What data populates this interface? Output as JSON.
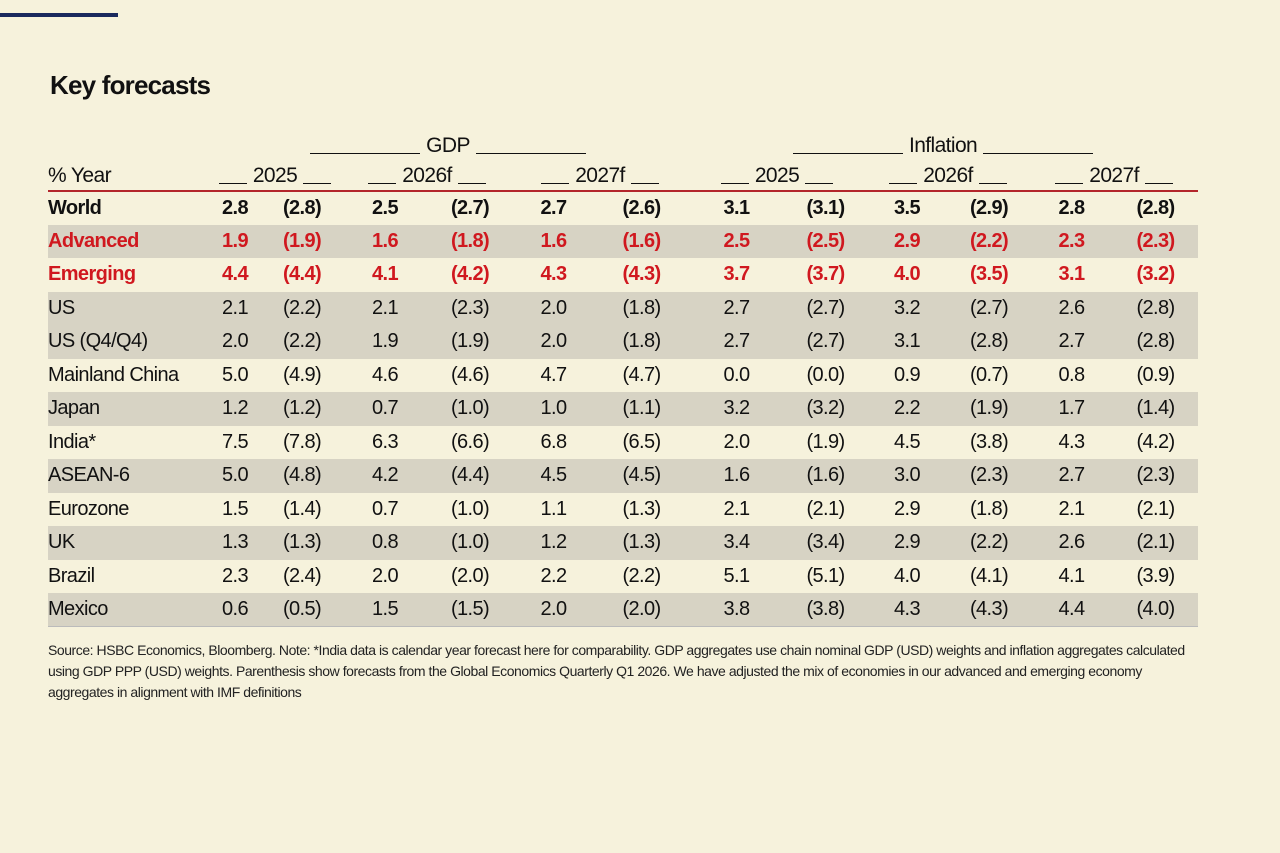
{
  "header": {
    "title": "Key forecasts"
  },
  "table": {
    "row_header": "% Year",
    "groups": [
      "GDP",
      "Inflation"
    ],
    "years": [
      "2025",
      "2026f",
      "2027f",
      "2025",
      "2026f",
      "2027f"
    ],
    "rows": [
      {
        "label": "World",
        "values": [
          "2.8",
          "(2.8)",
          "2.5",
          "(2.7)",
          "2.7",
          "(2.6)",
          "3.1",
          "(3.1)",
          "3.5",
          "(2.9)",
          "2.8",
          "(2.8)"
        ]
      },
      {
        "label": "Advanced",
        "values": [
          "1.9",
          "(1.9)",
          "1.6",
          "(1.8)",
          "1.6",
          "(1.6)",
          "2.5",
          "(2.5)",
          "2.9",
          "(2.2)",
          "2.3",
          "(2.3)"
        ]
      },
      {
        "label": "Emerging",
        "values": [
          "4.4",
          "(4.4)",
          "4.1",
          "(4.2)",
          "4.3",
          "(4.3)",
          "3.7",
          "(3.7)",
          "4.0",
          "(3.5)",
          "3.1",
          "(3.2)"
        ]
      },
      {
        "label": "US",
        "values": [
          "2.1",
          "(2.2)",
          "2.1",
          "(2.3)",
          "2.0",
          "(1.8)",
          "2.7",
          "(2.7)",
          "3.2",
          "(2.7)",
          "2.6",
          "(2.8)"
        ]
      },
      {
        "label": "US (Q4/Q4)",
        "values": [
          "2.0",
          "(2.2)",
          "1.9",
          "(1.9)",
          "2.0",
          "(1.8)",
          "2.7",
          "(2.7)",
          "3.1",
          "(2.8)",
          "2.7",
          "(2.8)"
        ]
      },
      {
        "label": "Mainland China",
        "values": [
          "5.0",
          "(4.9)",
          "4.6",
          "(4.6)",
          "4.7",
          "(4.7)",
          "0.0",
          "(0.0)",
          "0.9",
          "(0.7)",
          "0.8",
          "(0.9)"
        ]
      },
      {
        "label": "Japan",
        "values": [
          "1.2",
          "(1.2)",
          "0.7",
          "(1.0)",
          "1.0",
          "(1.1)",
          "3.2",
          "(3.2)",
          "2.2",
          "(1.9)",
          "1.7",
          "(1.4)"
        ]
      },
      {
        "label": "India*",
        "values": [
          "7.5",
          "(7.8)",
          "6.3",
          "(6.6)",
          "6.8",
          "(6.5)",
          "2.0",
          "(1.9)",
          "4.5",
          "(3.8)",
          "4.3",
          "(4.2)"
        ]
      },
      {
        "label": "ASEAN-6",
        "values": [
          "5.0",
          "(4.8)",
          "4.2",
          "(4.4)",
          "4.5",
          "(4.5)",
          "1.6",
          "(1.6)",
          "3.0",
          "(2.3)",
          "2.7",
          "(2.3)"
        ]
      },
      {
        "label": "Eurozone",
        "values": [
          "1.5",
          "(1.4)",
          "0.7",
          "(1.0)",
          "1.1",
          "(1.3)",
          "2.1",
          "(2.1)",
          "2.9",
          "(1.8)",
          "2.1",
          "(2.1)"
        ]
      },
      {
        "label": "UK",
        "values": [
          "1.3",
          "(1.3)",
          "0.8",
          "(1.0)",
          "1.2",
          "(1.3)",
          "3.4",
          "(3.4)",
          "2.9",
          "(2.2)",
          "2.6",
          "(2.1)"
        ]
      },
      {
        "label": "Brazil",
        "values": [
          "2.3",
          "(2.4)",
          "2.0",
          "(2.0)",
          "2.2",
          "(2.2)",
          "5.1",
          "(5.1)",
          "4.0",
          "(4.1)",
          "4.1",
          "(3.9)"
        ]
      },
      {
        "label": "Mexico",
        "values": [
          "0.6",
          "(0.5)",
          "1.5",
          "(1.5)",
          "2.0",
          "(2.0)",
          "3.8",
          "(3.8)",
          "4.3",
          "(4.3)",
          "4.4",
          "(4.0)"
        ]
      }
    ]
  },
  "footnote": "Source: HSBC Economics, Bloomberg. Note: *India data is calendar year forecast here for comparability. GDP aggregates use chain nominal GDP (USD) weights and inflation aggregates calculated using GDP PPP (USD) weights. Parenthesis show forecasts from the Global Economics Quarterly Q1 2026. We have adjusted the mix of economies in our advanced and emerging economy aggregates in alignment with IMF definitions"
}
